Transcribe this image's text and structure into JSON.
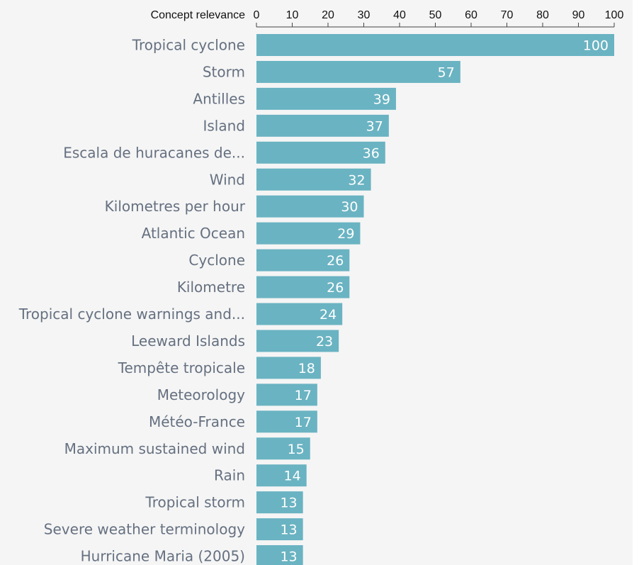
{
  "chart_data": {
    "type": "bar",
    "orientation": "horizontal",
    "axis_title": "Concept relevance",
    "xlim": [
      0,
      100
    ],
    "ticks": [
      0,
      10,
      20,
      30,
      40,
      50,
      60,
      70,
      80,
      90,
      100
    ],
    "bar_color": "#6ab3c2",
    "categories": [
      "Tropical cyclone",
      "Storm",
      "Antilles",
      "Island",
      "Escala de huracanes de...",
      "Wind",
      "Kilometres per hour",
      "Atlantic Ocean",
      "Cyclone",
      "Kilometre",
      "Tropical cyclone warnings and...",
      "Leeward Islands",
      "Tempête tropicale",
      "Meteorology",
      "Météo-France",
      "Maximum sustained wind",
      "Rain",
      "Tropical storm",
      "Severe weather terminology",
      "Hurricane Maria (2005)"
    ],
    "values": [
      100,
      57,
      39,
      37,
      36,
      32,
      30,
      29,
      26,
      26,
      24,
      23,
      18,
      17,
      17,
      15,
      14,
      13,
      13,
      13
    ]
  }
}
